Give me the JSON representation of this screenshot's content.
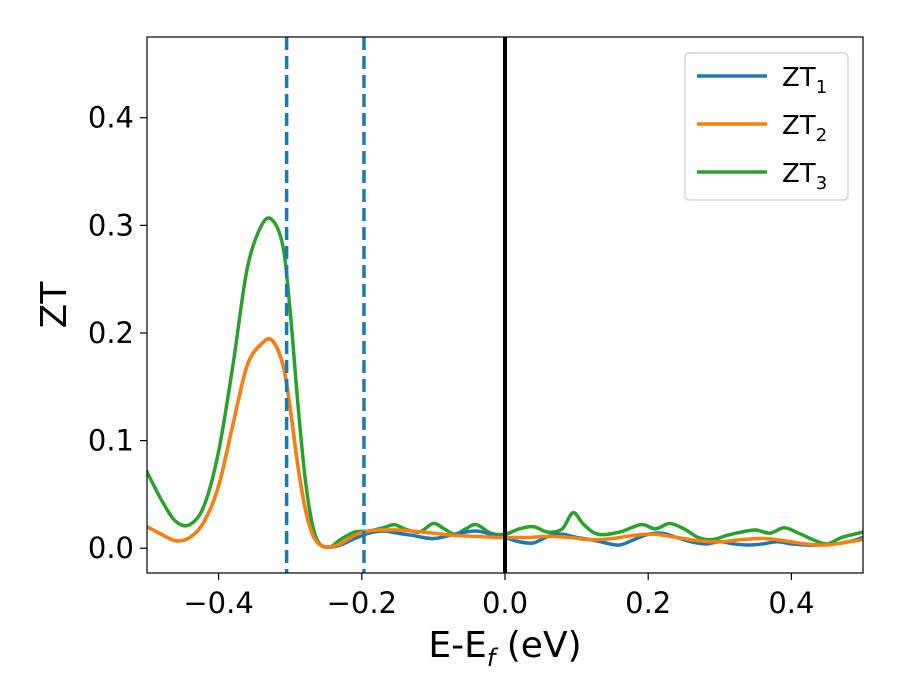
{
  "chart_data": {
    "type": "line",
    "xlabel": {
      "main": "E-E",
      "sub": "f",
      "rest": " (eV)"
    },
    "ylabel": "ZT",
    "xlim": [
      -0.5,
      0.5
    ],
    "ylim": [
      -0.023,
      0.475
    ],
    "xticks": [
      -0.4,
      -0.2,
      0.0,
      0.2,
      0.4
    ],
    "xtick_labels": [
      "−0.4",
      "−0.2",
      "0.0",
      "0.2",
      "0.4"
    ],
    "yticks": [
      0.0,
      0.1,
      0.2,
      0.3,
      0.4
    ],
    "ytick_labels": [
      "0.0",
      "0.1",
      "0.2",
      "0.3",
      "0.4"
    ],
    "grid": false,
    "legend_position": "top-right",
    "vlines": [
      {
        "x": -0.305,
        "style": "dashed",
        "color": "#1f77b4"
      },
      {
        "x": -0.197,
        "style": "dashed",
        "color": "#1f77b4"
      },
      {
        "x": 0.0,
        "style": "solid",
        "color": "#000000"
      }
    ],
    "series": [
      {
        "name": {
          "main": "ZT",
          "sub": "1"
        },
        "color": "#1f77b4",
        "x": [
          -0.5,
          -0.48,
          -0.46,
          -0.44,
          -0.42,
          -0.4,
          -0.38,
          -0.36,
          -0.34,
          -0.325,
          -0.31,
          -0.3,
          -0.29,
          -0.28,
          -0.27,
          -0.26,
          -0.245,
          -0.23,
          -0.21,
          -0.19,
          -0.17,
          -0.15,
          -0.13,
          -0.1,
          -0.07,
          -0.04,
          -0.01,
          0.0,
          0.02,
          0.04,
          0.06,
          0.08,
          0.1,
          0.12,
          0.14,
          0.16,
          0.18,
          0.2,
          0.22,
          0.24,
          0.26,
          0.28,
          0.3,
          0.32,
          0.34,
          0.36,
          0.38,
          0.4,
          0.42,
          0.44,
          0.46,
          0.48,
          0.5
        ],
        "y": [
          0.02,
          0.013,
          0.007,
          0.01,
          0.025,
          0.058,
          0.115,
          0.17,
          0.19,
          0.193,
          0.17,
          0.13,
          0.08,
          0.04,
          0.015,
          0.004,
          0.001,
          0.003,
          0.009,
          0.014,
          0.016,
          0.014,
          0.012,
          0.009,
          0.013,
          0.016,
          0.011,
          0.01,
          0.006,
          0.005,
          0.011,
          0.013,
          0.01,
          0.008,
          0.005,
          0.003,
          0.008,
          0.013,
          0.014,
          0.01,
          0.006,
          0.004,
          0.006,
          0.004,
          0.003,
          0.004,
          0.006,
          0.004,
          0.003,
          0.003,
          0.004,
          0.006,
          0.01
        ]
      },
      {
        "name": {
          "main": "ZT",
          "sub": "2"
        },
        "color": "#ff7f0e",
        "x": [
          -0.5,
          -0.48,
          -0.46,
          -0.44,
          -0.42,
          -0.4,
          -0.38,
          -0.36,
          -0.34,
          -0.325,
          -0.31,
          -0.3,
          -0.29,
          -0.28,
          -0.27,
          -0.26,
          -0.245,
          -0.23,
          -0.21,
          -0.19,
          -0.17,
          -0.15,
          -0.13,
          -0.1,
          -0.07,
          -0.04,
          -0.01,
          0.0,
          0.03,
          0.06,
          0.09,
          0.12,
          0.15,
          0.18,
          0.21,
          0.24,
          0.27,
          0.3,
          0.33,
          0.36,
          0.39,
          0.42,
          0.45,
          0.48,
          0.5
        ],
        "y": [
          0.02,
          0.013,
          0.007,
          0.01,
          0.025,
          0.058,
          0.115,
          0.17,
          0.19,
          0.193,
          0.17,
          0.13,
          0.08,
          0.04,
          0.015,
          0.004,
          0.001,
          0.004,
          0.012,
          0.016,
          0.017,
          0.017,
          0.016,
          0.014,
          0.012,
          0.011,
          0.01,
          0.01,
          0.01,
          0.011,
          0.01,
          0.008,
          0.009,
          0.012,
          0.013,
          0.01,
          0.007,
          0.006,
          0.008,
          0.009,
          0.007,
          0.004,
          0.003,
          0.006,
          0.008
        ]
      },
      {
        "name": {
          "main": "ZT",
          "sub": "3"
        },
        "color": "#2ca02c",
        "x": [
          -0.5,
          -0.48,
          -0.46,
          -0.44,
          -0.42,
          -0.4,
          -0.38,
          -0.36,
          -0.34,
          -0.325,
          -0.31,
          -0.3,
          -0.29,
          -0.28,
          -0.27,
          -0.26,
          -0.245,
          -0.23,
          -0.21,
          -0.19,
          -0.17,
          -0.155,
          -0.14,
          -0.12,
          -0.1,
          -0.085,
          -0.07,
          -0.055,
          -0.04,
          -0.02,
          0.0,
          0.02,
          0.04,
          0.06,
          0.08,
          0.095,
          0.11,
          0.13,
          0.16,
          0.19,
          0.21,
          0.23,
          0.25,
          0.27,
          0.29,
          0.31,
          0.33,
          0.35,
          0.37,
          0.39,
          0.41,
          0.43,
          0.45,
          0.47,
          0.5
        ],
        "y": [
          0.071,
          0.045,
          0.025,
          0.022,
          0.04,
          0.09,
          0.17,
          0.26,
          0.3,
          0.305,
          0.28,
          0.22,
          0.14,
          0.07,
          0.025,
          0.005,
          0.001,
          0.008,
          0.015,
          0.016,
          0.019,
          0.022,
          0.018,
          0.015,
          0.023,
          0.018,
          0.013,
          0.018,
          0.022,
          0.014,
          0.013,
          0.018,
          0.02,
          0.015,
          0.018,
          0.033,
          0.022,
          0.013,
          0.015,
          0.022,
          0.018,
          0.023,
          0.018,
          0.01,
          0.008,
          0.012,
          0.015,
          0.017,
          0.014,
          0.019,
          0.014,
          0.008,
          0.004,
          0.01,
          0.015
        ]
      }
    ]
  }
}
